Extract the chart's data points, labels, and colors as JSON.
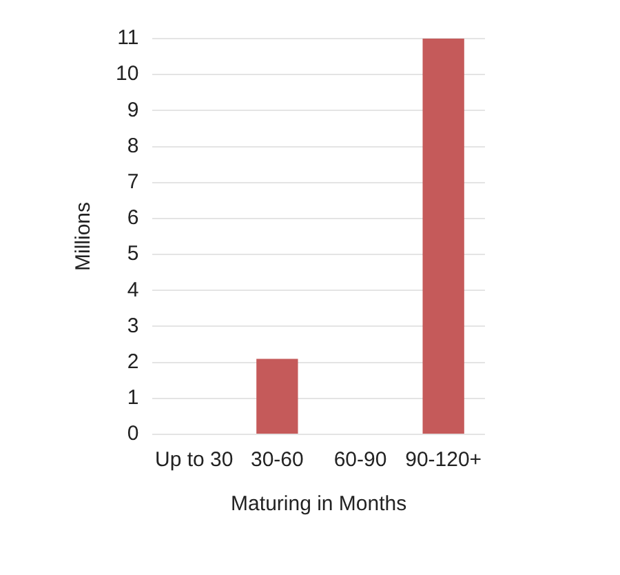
{
  "chart_data": {
    "type": "bar",
    "xlabel": "Maturing in Months",
    "ylabel": "Millions",
    "categories": [
      "Up to 30",
      "30-60",
      "60-90",
      "90-120+"
    ],
    "values": [
      0,
      2.1,
      0,
      11
    ],
    "color": "#c55a5a",
    "ylim": [
      0,
      11
    ],
    "yticks": [
      0,
      1,
      2,
      3,
      4,
      5,
      6,
      7,
      8,
      9,
      10,
      11
    ],
    "grid": "y",
    "legend": false
  }
}
